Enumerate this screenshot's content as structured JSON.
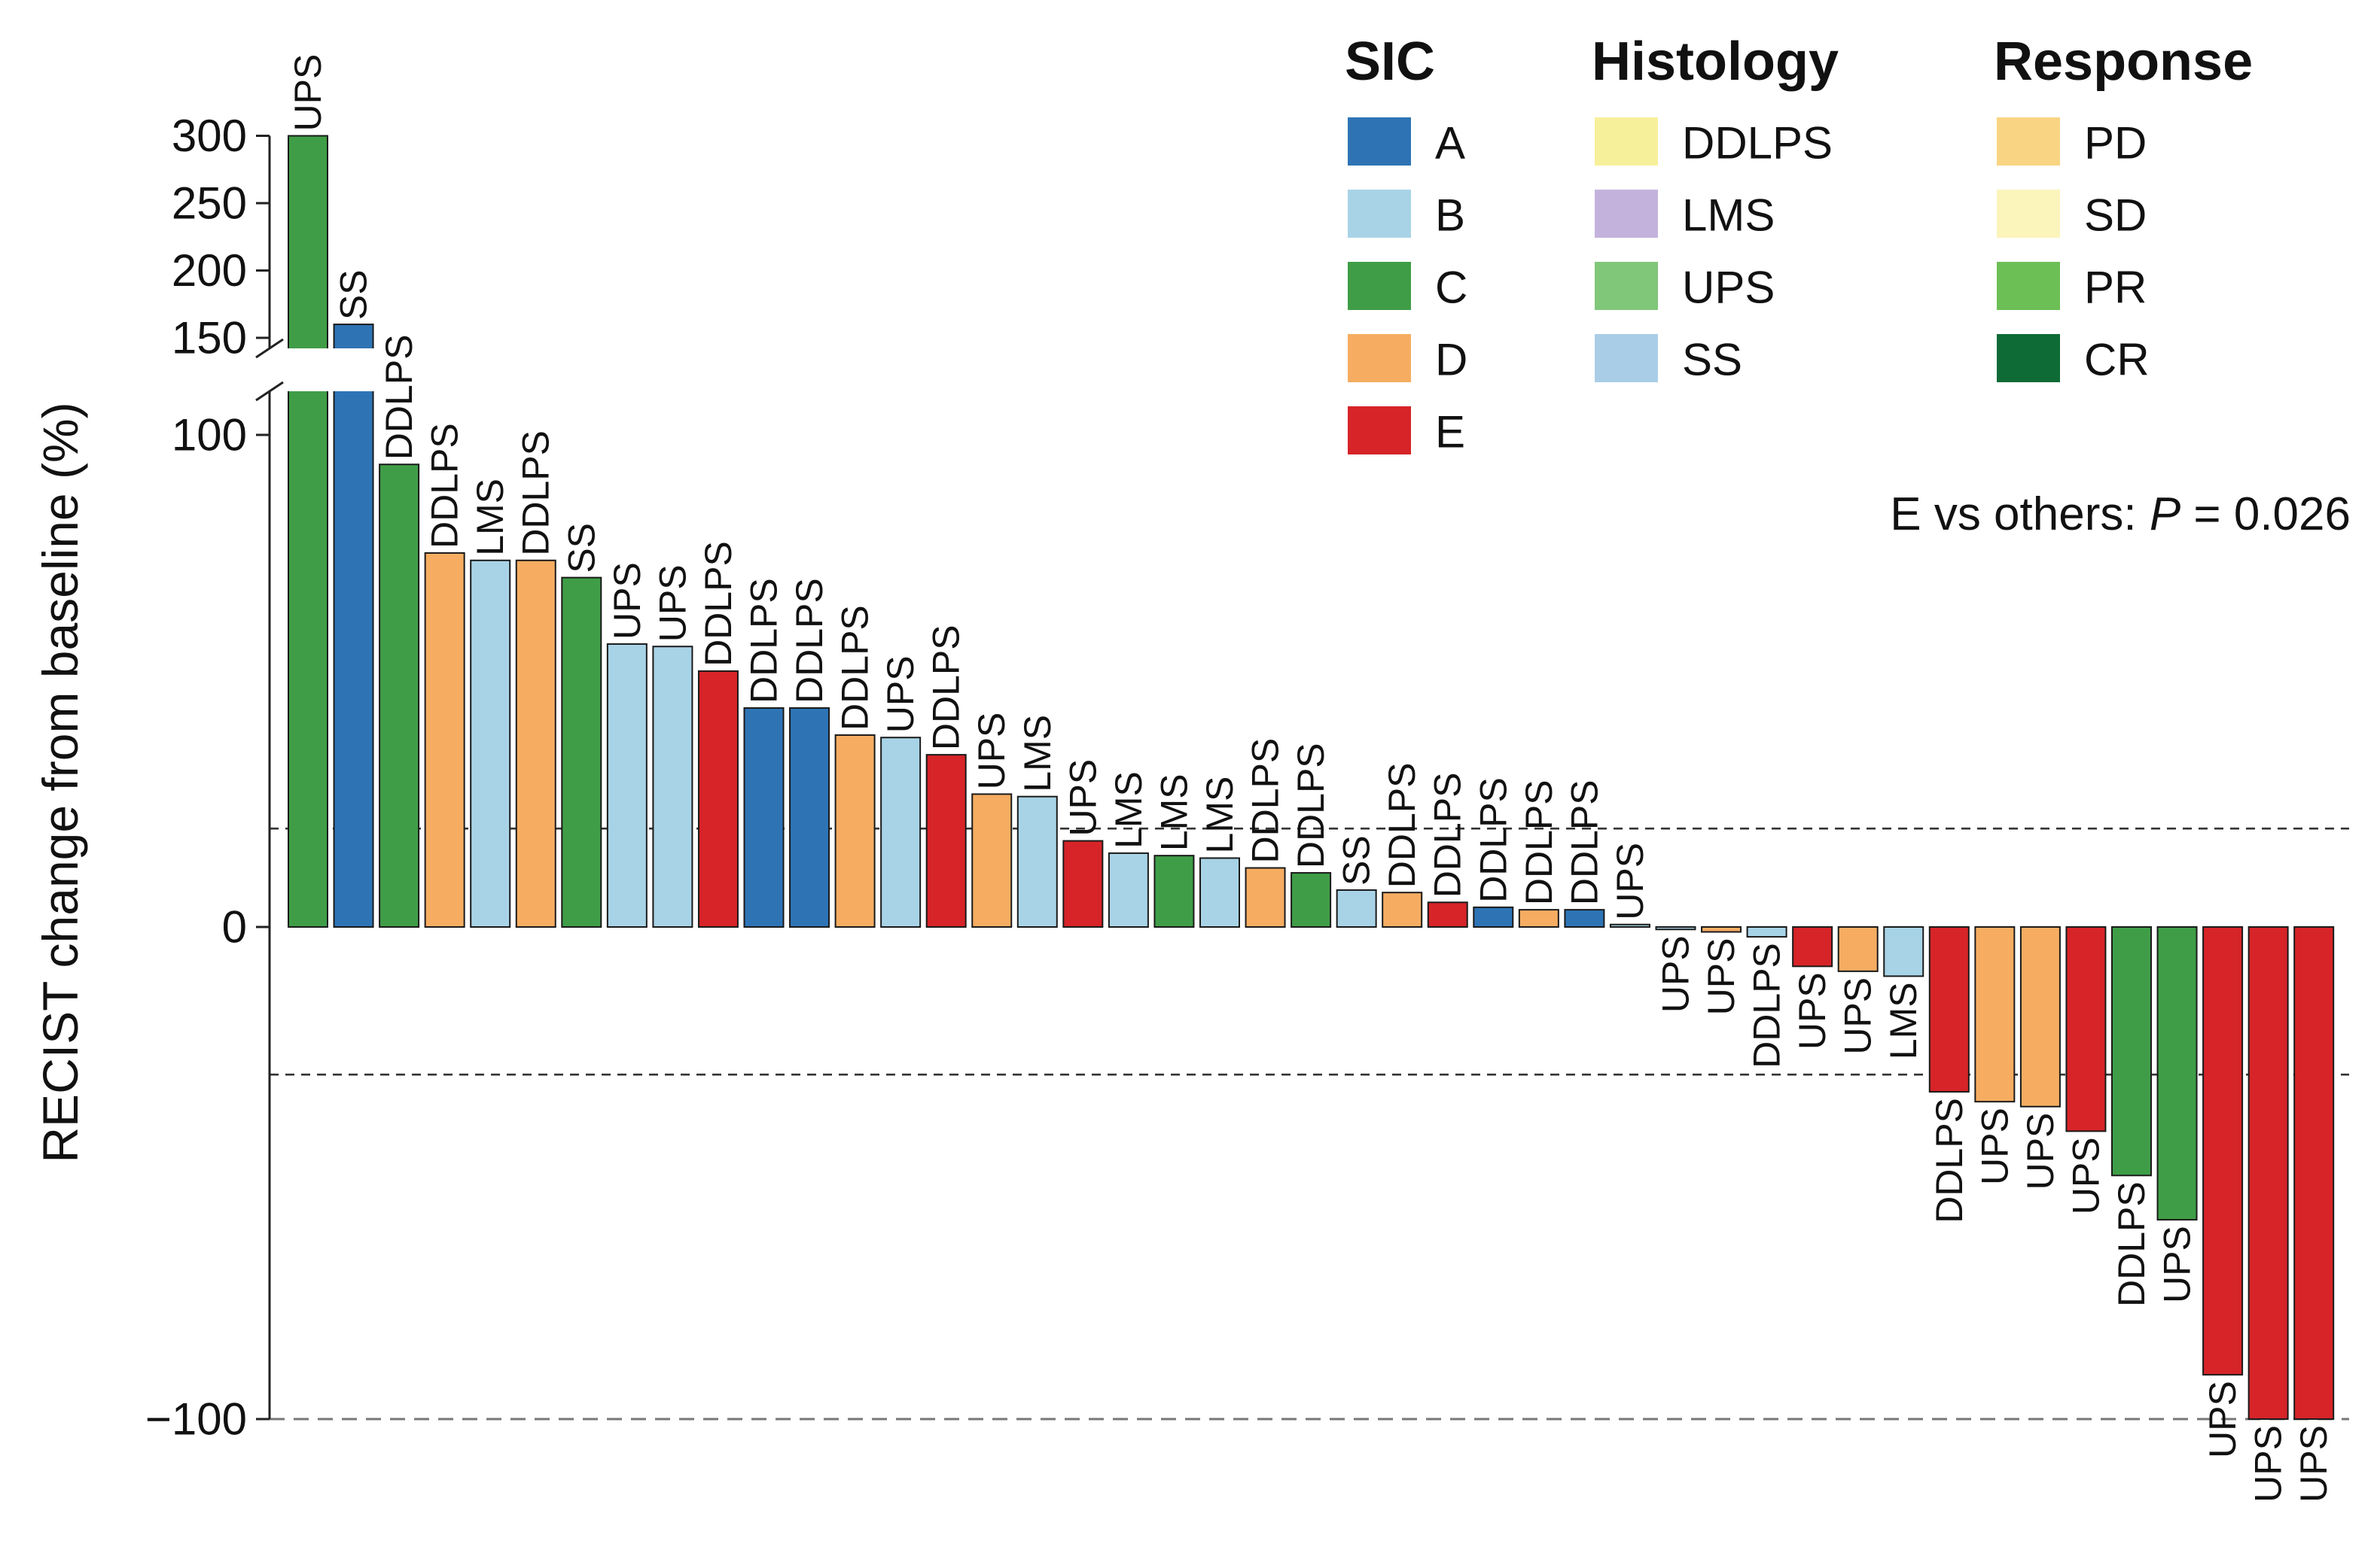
{
  "chart_data": {
    "type": "bar",
    "ylabel": "RECIST change from baseline (%)",
    "y_ticks_lower": [
      -100,
      0,
      100
    ],
    "y_ticks_upper": [
      150,
      200,
      250,
      300
    ],
    "ylim": [
      -100,
      300
    ],
    "axis_break": [
      110,
      145
    ],
    "reference_lines": [
      20,
      -30,
      -100
    ],
    "annotation": {
      "prefix": "E vs others: ",
      "stat": "P",
      "suffix": " = 0.026"
    },
    "colors": {
      "A": "#2e74b5",
      "B": "#a8d3e6",
      "C": "#3f9d47",
      "D": "#f6ad62",
      "E": "#d62428"
    },
    "legends": [
      {
        "title": "SIC",
        "items": [
          {
            "label": "A",
            "color": "#2e74b5"
          },
          {
            "label": "B",
            "color": "#a8d3e6"
          },
          {
            "label": "C",
            "color": "#3f9d47"
          },
          {
            "label": "D",
            "color": "#f6ad62"
          },
          {
            "label": "E",
            "color": "#d62428"
          }
        ]
      },
      {
        "title": "Histology",
        "items": [
          {
            "label": "DDLPS",
            "color": "#f7f09b"
          },
          {
            "label": "LMS",
            "color": "#c3b3dc"
          },
          {
            "label": "UPS",
            "color": "#80c77a"
          },
          {
            "label": "SS",
            "color": "#a9cde7"
          }
        ]
      },
      {
        "title": "Response",
        "items": [
          {
            "label": "PD",
            "color": "#f9d482"
          },
          {
            "label": "SD",
            "color": "#fbf4bb"
          },
          {
            "label": "PR",
            "color": "#6cbf55"
          },
          {
            "label": "CR",
            "color": "#0f6b36"
          }
        ]
      }
    ],
    "bars": [
      {
        "label": "UPS",
        "sic": "C",
        "value": 300
      },
      {
        "label": "SS",
        "sic": "A",
        "value": 160
      },
      {
        "label": "DDLPS",
        "sic": "C",
        "value": 94
      },
      {
        "label": "DDLPS",
        "sic": "D",
        "value": 76
      },
      {
        "label": "LMS",
        "sic": "B",
        "value": 74.5
      },
      {
        "label": "DDLPS",
        "sic": "D",
        "value": 74.5
      },
      {
        "label": "SS",
        "sic": "C",
        "value": 71
      },
      {
        "label": "UPS",
        "sic": "B",
        "value": 57.5
      },
      {
        "label": "UPS",
        "sic": "B",
        "value": 57
      },
      {
        "label": "DDLPS",
        "sic": "E",
        "value": 52
      },
      {
        "label": "DDLPS",
        "sic": "A",
        "value": 44.5
      },
      {
        "label": "DDLPS",
        "sic": "A",
        "value": 44.5
      },
      {
        "label": "DDLPS",
        "sic": "D",
        "value": 39
      },
      {
        "label": "UPS",
        "sic": "B",
        "value": 38.5
      },
      {
        "label": "DDLPS",
        "sic": "E",
        "value": 35
      },
      {
        "label": "UPS",
        "sic": "D",
        "value": 27
      },
      {
        "label": "LMS",
        "sic": "B",
        "value": 26.5
      },
      {
        "label": "UPS",
        "sic": "E",
        "value": 17.5
      },
      {
        "label": "LMS",
        "sic": "B",
        "value": 15
      },
      {
        "label": "LMS",
        "sic": "C",
        "value": 14.5
      },
      {
        "label": "LMS",
        "sic": "B",
        "value": 14
      },
      {
        "label": "DDLPS",
        "sic": "D",
        "value": 12
      },
      {
        "label": "DDLPS",
        "sic": "C",
        "value": 11
      },
      {
        "label": "SS",
        "sic": "B",
        "value": 7.5
      },
      {
        "label": "DDLPS",
        "sic": "D",
        "value": 7
      },
      {
        "label": "DDLPS",
        "sic": "E",
        "value": 5
      },
      {
        "label": "DDLPS",
        "sic": "A",
        "value": 4
      },
      {
        "label": "DDLPS",
        "sic": "D",
        "value": 3.5
      },
      {
        "label": "DDLPS",
        "sic": "A",
        "value": 3.5
      },
      {
        "label": "UPS",
        "sic": "B",
        "value": 0.5
      },
      {
        "label": "UPS",
        "sic": "B",
        "value": -0.5
      },
      {
        "label": "UPS",
        "sic": "D",
        "value": -1
      },
      {
        "label": "DDLPS",
        "sic": "B",
        "value": -2
      },
      {
        "label": "UPS",
        "sic": "E",
        "value": -8
      },
      {
        "label": "UPS",
        "sic": "D",
        "value": -9
      },
      {
        "label": "LMS",
        "sic": "B",
        "value": -10
      },
      {
        "label": "DDLPS",
        "sic": "E",
        "value": -33.5
      },
      {
        "label": "UPS",
        "sic": "D",
        "value": -35.5
      },
      {
        "label": "UPS",
        "sic": "D",
        "value": -36.5
      },
      {
        "label": "UPS",
        "sic": "E",
        "value": -41.5
      },
      {
        "label": "DDLPS",
        "sic": "C",
        "value": -50.5
      },
      {
        "label": "UPS",
        "sic": "C",
        "value": -59.5
      },
      {
        "label": "UPS",
        "sic": "E",
        "value": -91
      },
      {
        "label": "UPS",
        "sic": "E",
        "value": -100
      },
      {
        "label": "UPS",
        "sic": "E",
        "value": -100
      }
    ]
  }
}
